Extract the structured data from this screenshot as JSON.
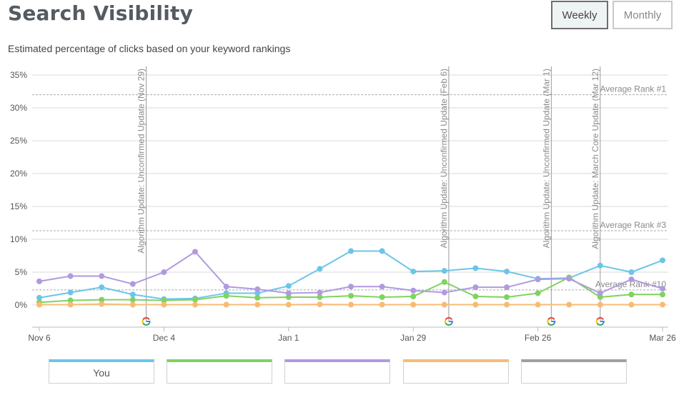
{
  "header": {
    "title": "Search Visibility",
    "subtitle": "Estimated percentage of clicks based on your keyword rankings",
    "weekly_label": "Weekly",
    "monthly_label": "Monthly",
    "active_period": "Weekly"
  },
  "colors": {
    "you": "#6cc5e9",
    "green": "#7fd35f",
    "purple": "#b19ae0",
    "orange": "#f7bb75",
    "gray": "#a0a0a0",
    "grid": "#d9d9d9"
  },
  "chart_data": {
    "type": "line",
    "title": "Search Visibility",
    "subtitle": "Estimated percentage of clicks based on your keyword rankings",
    "xlabel": "",
    "ylabel": "",
    "ylim": [
      0,
      35
    ],
    "ytick_values": [
      0,
      5,
      10,
      15,
      20,
      25,
      30,
      35
    ],
    "yticks": [
      "0%",
      "5%",
      "10%",
      "15%",
      "20%",
      "25%",
      "30%",
      "35%"
    ],
    "x_start": "Nov 6",
    "x_end": "Mar 26",
    "xticks": [
      {
        "label": "Nov 6",
        "week": 0
      },
      {
        "label": "Dec 4",
        "week": 4
      },
      {
        "label": "Jan 1",
        "week": 8
      },
      {
        "label": "Jan 29",
        "week": 12
      },
      {
        "label": "Feb 26",
        "week": 16
      },
      {
        "label": "Mar 26",
        "week": 20
      }
    ],
    "grid": true,
    "series": [
      {
        "name": "You",
        "color_key": "you",
        "values": [
          1.1,
          1.9,
          2.7,
          1.6,
          0.9,
          1.0,
          1.8,
          1.8,
          2.9,
          5.5,
          8.2,
          8.2,
          5.1,
          5.2,
          5.6,
          5.1,
          4.0,
          4.1,
          6.0,
          5.0,
          6.8
        ]
      },
      {
        "color_key": "green",
        "values": [
          0.4,
          0.7,
          0.8,
          0.8,
          0.7,
          0.8,
          1.4,
          1.1,
          1.2,
          1.2,
          1.4,
          1.2,
          1.3,
          3.5,
          1.3,
          1.2,
          1.8,
          4.2,
          1.2,
          1.6,
          1.6
        ]
      },
      {
        "color_key": "purple",
        "values": [
          3.6,
          4.4,
          4.4,
          3.2,
          5.0,
          8.1,
          2.8,
          2.4,
          1.8,
          1.9,
          2.8,
          2.8,
          2.2,
          1.9,
          2.7,
          2.7,
          3.9,
          4.0,
          1.8,
          3.9,
          2.5
        ]
      },
      {
        "color_key": "orange",
        "values": [
          0.05,
          0.05,
          0.15,
          0.05,
          0.05,
          0.05,
          0.05,
          0.05,
          0.05,
          0.1,
          0.05,
          0.05,
          0.05,
          0.05,
          0.05,
          0.05,
          0.05,
          0.05,
          0.05,
          0.05,
          0.05
        ]
      }
    ],
    "rank_lines": [
      {
        "label": "Average Rank #1",
        "value": 32
      },
      {
        "label": "Average Rank #3",
        "value": 11.3
      },
      {
        "label": "Average Rank #10",
        "value": 2.3
      }
    ],
    "annotations": [
      {
        "label": "Algorithm Update: Unconfirmed Update (Nov 29)",
        "week": 3.43
      },
      {
        "label": "Algorithm Update: Unconfirmed Update (Feb 6)",
        "week": 13.14
      },
      {
        "label": "Algorithm Update: Unconfirmed Update (Mar 1)",
        "week": 16.43
      },
      {
        "label": "Algorithm Update: March Core Update (Mar 12)",
        "week": 18.0
      }
    ],
    "annotation_icon": "google-g-icon"
  },
  "legend": [
    {
      "label": "You",
      "color_key": "you"
    },
    {
      "label": "",
      "color_key": "green"
    },
    {
      "label": "",
      "color_key": "purple"
    },
    {
      "label": "",
      "color_key": "orange"
    },
    {
      "label": "",
      "color_key": "gray"
    }
  ]
}
